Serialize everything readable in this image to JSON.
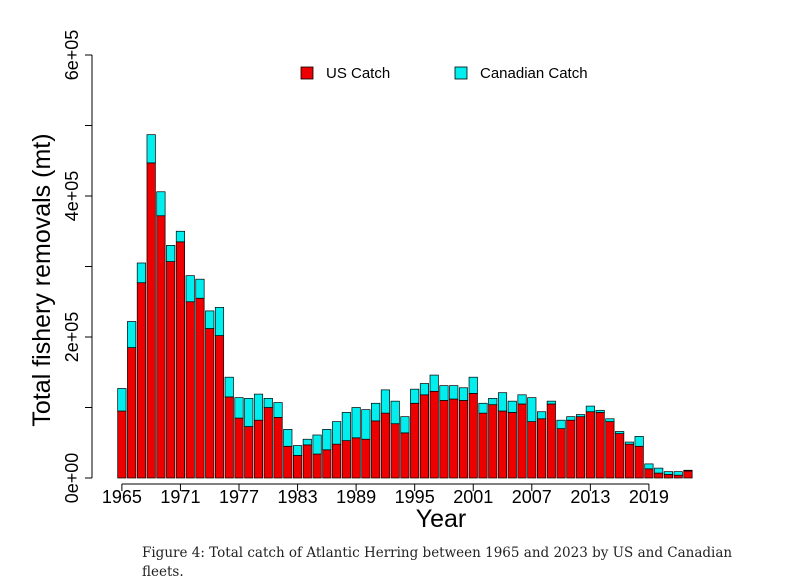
{
  "chart_data": {
    "type": "bar",
    "stacked": true,
    "xlabel": "Year",
    "ylabel": "Total fishery removals (mt)",
    "ylim": [
      0,
      600000
    ],
    "yticks": [
      0,
      200000,
      400000,
      600000
    ],
    "ytick_labels": [
      "0e+00",
      "2e+05",
      "4e+05",
      "6e+05"
    ],
    "xtick_labels": [
      "1965",
      "1971",
      "1977",
      "1983",
      "1989",
      "1995",
      "2001",
      "2007",
      "2013",
      "2019"
    ],
    "categories": [
      "1965",
      "1966",
      "1967",
      "1968",
      "1969",
      "1970",
      "1971",
      "1972",
      "1973",
      "1974",
      "1975",
      "1976",
      "1977",
      "1978",
      "1979",
      "1980",
      "1981",
      "1982",
      "1983",
      "1984",
      "1985",
      "1986",
      "1987",
      "1988",
      "1989",
      "1990",
      "1991",
      "1992",
      "1993",
      "1994",
      "1995",
      "1996",
      "1997",
      "1998",
      "1999",
      "2000",
      "2001",
      "2002",
      "2003",
      "2004",
      "2005",
      "2006",
      "2007",
      "2008",
      "2009",
      "2010",
      "2011",
      "2012",
      "2013",
      "2014",
      "2015",
      "2016",
      "2017",
      "2018",
      "2019",
      "2020",
      "2021",
      "2022",
      "2023"
    ],
    "legend_position": "top",
    "series": [
      {
        "name": "US Catch",
        "color": "#ee0000",
        "values": [
          95000,
          185000,
          277000,
          447000,
          372000,
          307000,
          335000,
          250000,
          255000,
          212000,
          202000,
          115000,
          85000,
          73000,
          82000,
          100000,
          86000,
          45000,
          32000,
          47000,
          34000,
          40000,
          48000,
          53000,
          57000,
          55000,
          81000,
          92000,
          77000,
          64000,
          106000,
          118000,
          123000,
          110000,
          112000,
          110000,
          120000,
          92000,
          104000,
          95000,
          93000,
          105000,
          80000,
          84000,
          105000,
          70000,
          82000,
          87000,
          94000,
          93000,
          80000,
          63000,
          48000,
          45000,
          13000,
          7000,
          5000,
          4000,
          10000
        ]
      },
      {
        "name": "Canadian Catch",
        "color": "#00eeee",
        "values": [
          32000,
          37000,
          28000,
          40000,
          34000,
          23000,
          15000,
          37000,
          27000,
          25000,
          40000,
          28000,
          29000,
          40000,
          37000,
          13000,
          21000,
          24000,
          14000,
          8000,
          27000,
          29000,
          32000,
          40000,
          43000,
          42000,
          25000,
          33000,
          32000,
          23000,
          20000,
          16000,
          23000,
          21000,
          19000,
          18000,
          23000,
          14000,
          9000,
          26000,
          16000,
          13000,
          34000,
          10000,
          4000,
          12000,
          5000,
          3000,
          8000,
          3000,
          4000,
          3000,
          3000,
          14000,
          7000,
          7000,
          4000,
          5000,
          1000
        ]
      }
    ]
  },
  "caption": "Figure 4:  Total catch of Atlantic Herring between 1965 and 2023 by US and Canadian fleets."
}
